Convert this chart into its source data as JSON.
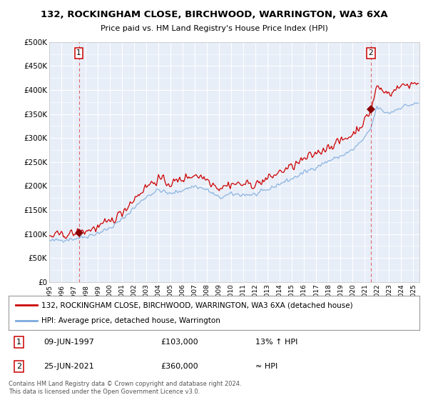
{
  "title": "132, ROCKINGHAM CLOSE, BIRCHWOOD, WARRINGTON, WA3 6XA",
  "subtitle": "Price paid vs. HM Land Registry's House Price Index (HPI)",
  "ylim": [
    0,
    500000
  ],
  "yticks": [
    0,
    50000,
    100000,
    150000,
    200000,
    250000,
    300000,
    350000,
    400000,
    450000,
    500000
  ],
  "ytick_labels": [
    "£0",
    "£50K",
    "£100K",
    "£150K",
    "£200K",
    "£250K",
    "£300K",
    "£350K",
    "£400K",
    "£450K",
    "£500K"
  ],
  "sale1_date": 1997.44,
  "sale1_price": 103000,
  "sale2_date": 2021.48,
  "sale2_price": 360000,
  "legend_line1": "132, ROCKINGHAM CLOSE, BIRCHWOOD, WARRINGTON, WA3 6XA (detached house)",
  "legend_line2": "HPI: Average price, detached house, Warrington",
  "footer": "Contains HM Land Registry data © Crown copyright and database right 2024.\nThis data is licensed under the Open Government Licence v3.0.",
  "red_color": "#cc0000",
  "blue_color": "#7aaadd",
  "plot_bg": "#e8eef8"
}
